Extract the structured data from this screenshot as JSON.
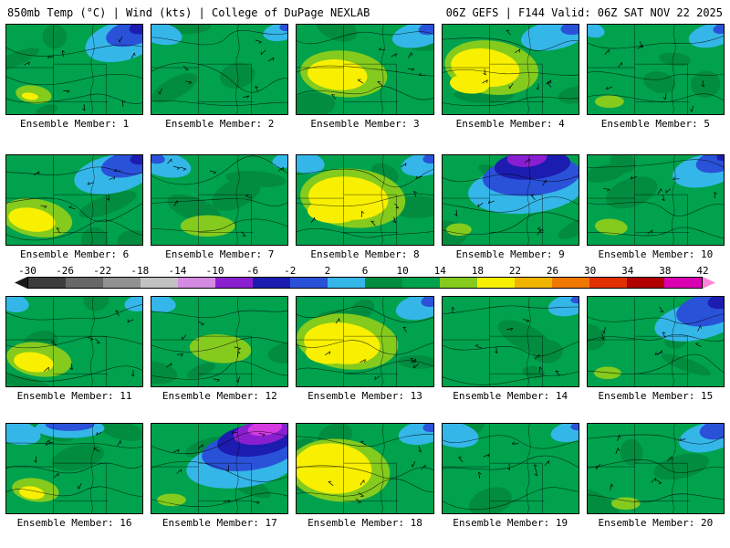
{
  "header": {
    "left": "850mb Temp (°C) | Wind (kts) | College of DuPage NEXLAB",
    "right": "06Z GEFS | F144 Valid: 06Z SAT NOV 22 2025"
  },
  "colorbar": {
    "ticks": [
      "-30",
      "-26",
      "-22",
      "-18",
      "-14",
      "-10",
      "-6",
      "-2",
      "2",
      "6",
      "10",
      "14",
      "18",
      "22",
      "26",
      "30",
      "34",
      "38",
      "42"
    ],
    "segments": [
      "#3d3d3d",
      "#676767",
      "#929292",
      "#c2c2c2",
      "#d48ae0",
      "#8a1fd0",
      "#1c1cb0",
      "#2a52d8",
      "#35b6e8",
      "#028c3f",
      "#00a24d",
      "#84cb1e",
      "#f8f000",
      "#f0b400",
      "#f07800",
      "#e03000",
      "#b00000",
      "#d800b0"
    ],
    "left_arrow": "#1a1a1a",
    "right_arrow": "#ff86d8"
  },
  "palette": {
    "base_green": "#00a24d",
    "dark_green": "#028c3f",
    "light_green": "#84cb1e",
    "yellow": "#f8f000",
    "cyan": "#35b6e8",
    "blue": "#2a52d8",
    "navy": "#1c1cb0",
    "purple": "#8a1fd0",
    "magenta": "#d43ae0"
  },
  "panels": [
    {
      "member": 1,
      "label": "Ensemble Member: 1",
      "blobs": [
        [
          "c",
          128,
          18,
          42,
          22,
          -15
        ],
        [
          "b",
          139,
          9,
          30,
          14,
          -15
        ],
        [
          "nb",
          151,
          2,
          16,
          8,
          -15
        ],
        [
          "lg",
          30,
          78,
          20,
          10,
          8
        ],
        [
          "y",
          26,
          80,
          9,
          4,
          8
        ]
      ]
    },
    {
      "member": 2,
      "label": "Ensemble Member: 2",
      "blobs": [
        [
          "c",
          10,
          10,
          24,
          12,
          12
        ],
        [
          "c",
          143,
          8,
          20,
          10,
          -10
        ],
        [
          "b",
          151,
          2,
          10,
          5,
          -10
        ]
      ]
    },
    {
      "member": 3,
      "label": "Ensemble Member: 3",
      "blobs": [
        [
          "lg",
          52,
          55,
          48,
          26,
          5
        ],
        [
          "y",
          45,
          56,
          33,
          17,
          5
        ],
        [
          "c",
          135,
          11,
          30,
          14,
          -12
        ],
        [
          "b",
          148,
          4,
          14,
          7,
          -12
        ]
      ]
    },
    {
      "member": 4,
      "label": "Ensemble Member: 4",
      "blobs": [
        [
          "lg",
          54,
          48,
          52,
          30,
          8
        ],
        [
          "y",
          47,
          48,
          38,
          21,
          8
        ],
        [
          "y",
          30,
          66,
          22,
          11,
          4
        ],
        [
          "c",
          122,
          12,
          36,
          16,
          -10
        ],
        [
          "b",
          146,
          3,
          16,
          8,
          -10
        ]
      ]
    },
    {
      "member": 5,
      "label": "Ensemble Member: 5",
      "blobs": [
        [
          "c",
          137,
          12,
          26,
          13,
          -12
        ],
        [
          "b",
          150,
          4,
          12,
          6,
          -12
        ],
        [
          "c",
          5,
          6,
          14,
          8,
          15
        ],
        [
          "lg",
          24,
          86,
          16,
          7,
          0
        ]
      ]
    },
    {
      "member": 6,
      "label": "Ensemble Member: 6",
      "blobs": [
        [
          "c",
          118,
          21,
          44,
          21,
          -12
        ],
        [
          "b",
          134,
          10,
          30,
          14,
          -12
        ],
        [
          "nb",
          150,
          3,
          14,
          7,
          -12
        ],
        [
          "lg",
          33,
          70,
          40,
          21,
          10
        ],
        [
          "y",
          28,
          72,
          26,
          13,
          10
        ]
      ]
    },
    {
      "member": 7,
      "label": "Ensemble Member: 7",
      "blobs": [
        [
          "c",
          14,
          10,
          30,
          14,
          12
        ],
        [
          "b",
          3,
          3,
          12,
          6,
          12
        ],
        [
          "lg",
          62,
          79,
          30,
          12,
          0
        ],
        [
          "c",
          147,
          6,
          14,
          8,
          -10
        ]
      ]
    },
    {
      "member": 8,
      "label": "Ensemble Member: 8",
      "blobs": [
        [
          "lg",
          62,
          48,
          58,
          33,
          5
        ],
        [
          "y",
          57,
          48,
          44,
          24,
          5
        ],
        [
          "y",
          40,
          63,
          28,
          13,
          3
        ],
        [
          "c",
          9,
          8,
          22,
          12,
          10
        ],
        [
          "c",
          141,
          10,
          26,
          13,
          -10
        ],
        [
          "b",
          151,
          3,
          12,
          6,
          -10
        ]
      ]
    },
    {
      "member": 9,
      "label": "Ensemble Member: 9",
      "blobs": [
        [
          "c",
          92,
          38,
          64,
          27,
          -5
        ],
        [
          "b",
          98,
          23,
          54,
          22,
          -5
        ],
        [
          "nb",
          99,
          11,
          42,
          16,
          -5
        ],
        [
          "pu",
          93,
          3,
          22,
          10,
          -5
        ],
        [
          "lg",
          18,
          83,
          14,
          7,
          0
        ]
      ]
    },
    {
      "member": 10,
      "label": "Ensemble Member: 10",
      "blobs": [
        [
          "c",
          130,
          17,
          37,
          18,
          -12
        ],
        [
          "b",
          143,
          7,
          24,
          12,
          -12
        ],
        [
          "nb",
          152,
          1,
          10,
          5,
          -12
        ],
        [
          "lg",
          26,
          80,
          18,
          9,
          5
        ]
      ]
    },
    {
      "member": 11,
      "label": "Ensemble Member: 11",
      "blobs": [
        [
          "lg",
          36,
          70,
          36,
          19,
          8
        ],
        [
          "y",
          30,
          73,
          22,
          11,
          8
        ],
        [
          "c",
          7,
          7,
          18,
          10,
          10
        ],
        [
          "c",
          146,
          7,
          16,
          9,
          -10
        ]
      ]
    },
    {
      "member": 12,
      "label": "Ensemble Member: 12",
      "blobs": [
        [
          "c",
          8,
          7,
          19,
          10,
          10
        ],
        [
          "lg",
          76,
          58,
          34,
          16,
          4
        ]
      ]
    },
    {
      "member": 13,
      "label": "Ensemble Member: 13",
      "blobs": [
        [
          "lg",
          56,
          50,
          56,
          31,
          6
        ],
        [
          "y",
          50,
          52,
          42,
          23,
          6
        ],
        [
          "y",
          34,
          63,
          24,
          12,
          3
        ],
        [
          "c",
          137,
          11,
          28,
          14,
          -12
        ],
        [
          "b",
          150,
          4,
          13,
          7,
          -12
        ]
      ]
    },
    {
      "member": 14,
      "label": "Ensemble Member: 14",
      "blobs": [
        [
          "c",
          140,
          9,
          24,
          12,
          -12
        ],
        [
          "b",
          152,
          2,
          11,
          5,
          -12
        ]
      ]
    },
    {
      "member": 15,
      "label": "Ensemble Member: 15",
      "blobs": [
        [
          "c",
          121,
          27,
          48,
          21,
          -12
        ],
        [
          "b",
          134,
          14,
          37,
          18,
          -12
        ],
        [
          "nb",
          150,
          4,
          18,
          9,
          -12
        ],
        [
          "lg",
          22,
          85,
          15,
          7,
          0
        ]
      ]
    },
    {
      "member": 16,
      "label": "Ensemble Member: 16",
      "blobs": [
        [
          "c",
          70,
          5,
          38,
          11,
          0
        ],
        [
          "b",
          70,
          1,
          27,
          7,
          0
        ],
        [
          "c",
          12,
          10,
          26,
          13,
          10
        ],
        [
          "lg",
          32,
          74,
          26,
          13,
          8
        ],
        [
          "y",
          28,
          77,
          14,
          7,
          8
        ]
      ]
    },
    {
      "member": 17,
      "label": "Ensemble Member: 17",
      "blobs": [
        [
          "c",
          100,
          45,
          62,
          26,
          -8
        ],
        [
          "b",
          108,
          30,
          53,
          22,
          -8
        ],
        [
          "nb",
          115,
          18,
          43,
          18,
          -8
        ],
        [
          "pu",
          121,
          10,
          31,
          13,
          -8
        ],
        [
          "mg",
          125,
          5,
          19,
          8,
          -8
        ],
        [
          "lg",
          22,
          85,
          16,
          7,
          0
        ]
      ]
    },
    {
      "member": 18,
      "label": "Ensemble Member: 18",
      "blobs": [
        [
          "lg",
          47,
          52,
          56,
          35,
          5
        ],
        [
          "y",
          40,
          50,
          43,
          28,
          5
        ],
        [
          "y",
          26,
          37,
          20,
          14,
          0
        ],
        [
          "c",
          138,
          10,
          26,
          13,
          -10
        ],
        [
          "b",
          151,
          3,
          12,
          6,
          -10
        ]
      ]
    },
    {
      "member": 19,
      "label": "Ensemble Member: 19",
      "blobs": [
        [
          "c",
          12,
          12,
          28,
          14,
          10
        ],
        [
          "c",
          141,
          9,
          22,
          11,
          -10
        ],
        [
          "b",
          152,
          2,
          11,
          5,
          -10
        ]
      ]
    },
    {
      "member": 20,
      "label": "Ensemble Member: 20",
      "blobs": [
        [
          "c",
          133,
          15,
          33,
          16,
          -12
        ],
        [
          "b",
          145,
          6,
          22,
          11,
          -12
        ],
        [
          "lg",
          42,
          89,
          16,
          7,
          0
        ]
      ]
    }
  ]
}
